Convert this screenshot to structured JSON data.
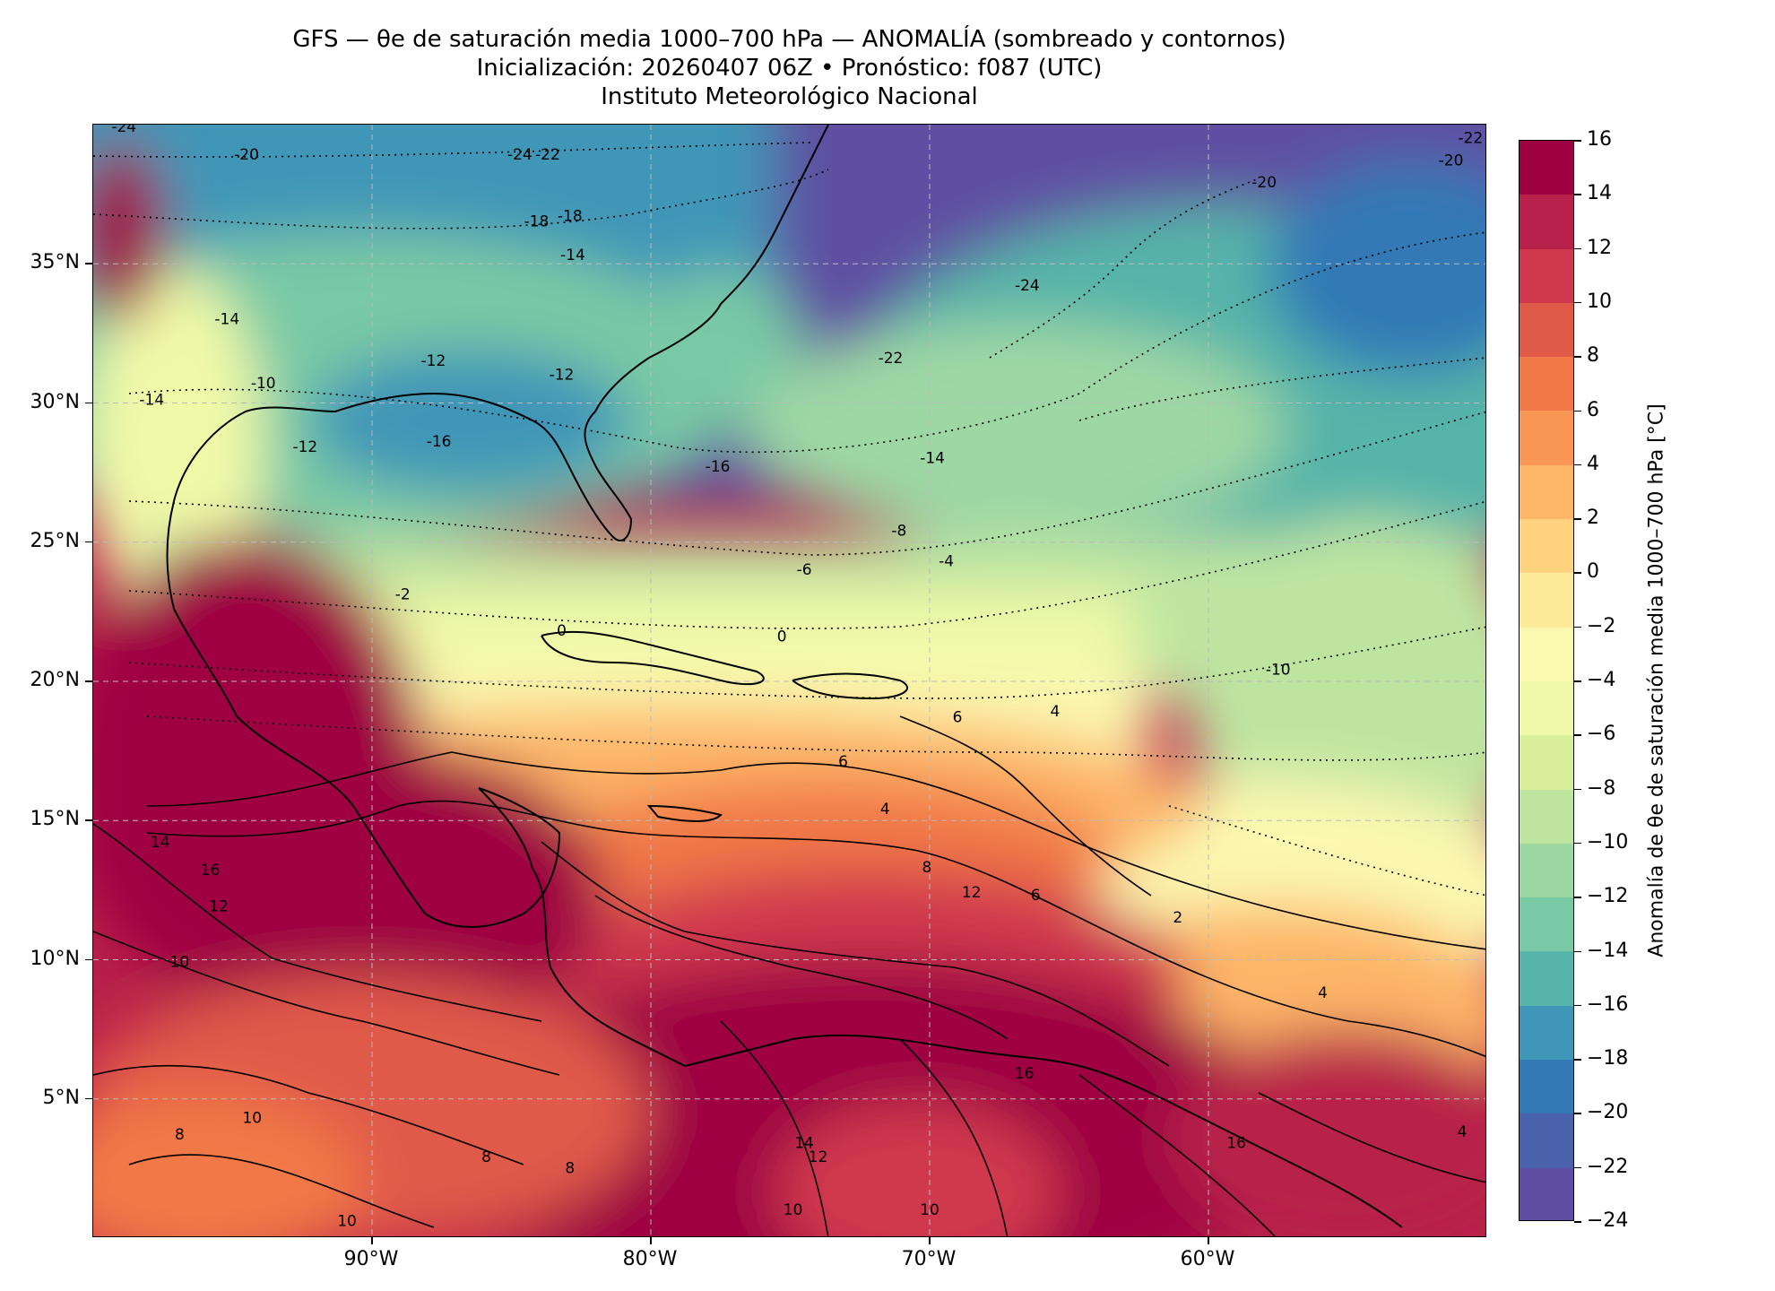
{
  "header": {
    "title_line1": "GFS — θe de saturación media 1000–700 hPa — ANOMALÍA (sombreado y contornos)",
    "title_line2": "Inicialización: 20260407 06Z   •   Pronóstico: f087 (UTC)",
    "title_line3": "Instituto Meteorológico Nacional"
  },
  "map": {
    "lat_ticks": [
      {
        "value": 35,
        "label": "35°N"
      },
      {
        "value": 30,
        "label": "30°N"
      },
      {
        "value": 25,
        "label": "25°N"
      },
      {
        "value": 20,
        "label": "20°N"
      },
      {
        "value": 15,
        "label": "15°N"
      },
      {
        "value": 10,
        "label": "10°N"
      },
      {
        "value": 5,
        "label": "5°N"
      }
    ],
    "lon_ticks": [
      {
        "value": -90,
        "label": "90°W"
      },
      {
        "value": -80,
        "label": "80°W"
      },
      {
        "value": -70,
        "label": "70°W"
      },
      {
        "value": -60,
        "label": "60°W"
      }
    ],
    "extent": {
      "lon_min": -100,
      "lon_max": -50,
      "lat_min": 0,
      "lat_max": 40
    },
    "contour_labels": [
      {
        "text": "-24",
        "lon": -98.9,
        "lat": 39.9
      },
      {
        "text": "-20",
        "lon": -94.5,
        "lat": 38.9
      },
      {
        "text": "-24",
        "lon": -84.7,
        "lat": 38.9
      },
      {
        "text": "-22",
        "lon": -83.7,
        "lat": 38.9
      },
      {
        "text": "-18",
        "lon": -84.1,
        "lat": 36.5
      },
      {
        "text": "-18",
        "lon": -82.9,
        "lat": 36.7
      },
      {
        "text": "-14",
        "lon": -82.8,
        "lat": 35.3
      },
      {
        "text": "-14",
        "lon": -95.2,
        "lat": 33.0
      },
      {
        "text": "-12",
        "lon": -87.8,
        "lat": 31.5
      },
      {
        "text": "-12",
        "lon": -83.2,
        "lat": 31.0
      },
      {
        "text": "-10",
        "lon": -93.9,
        "lat": 30.7
      },
      {
        "text": "-14",
        "lon": -97.9,
        "lat": 30.1
      },
      {
        "text": "-16",
        "lon": -87.6,
        "lat": 28.6
      },
      {
        "text": "-12",
        "lon": -92.4,
        "lat": 28.4
      },
      {
        "text": "-16",
        "lon": -77.6,
        "lat": 27.7
      },
      {
        "text": "-22",
        "lon": -71.4,
        "lat": 31.6
      },
      {
        "text": "-24",
        "lon": -66.5,
        "lat": 34.2
      },
      {
        "text": "-20",
        "lon": -58.0,
        "lat": 37.9
      },
      {
        "text": "-20",
        "lon": -51.3,
        "lat": 38.7
      },
      {
        "text": "-22",
        "lon": -50.6,
        "lat": 39.5
      },
      {
        "text": "-14",
        "lon": -69.9,
        "lat": 28.0
      },
      {
        "text": "-8",
        "lon": -71.1,
        "lat": 25.4
      },
      {
        "text": "-6",
        "lon": -74.5,
        "lat": 24.0
      },
      {
        "text": "-4",
        "lon": -69.4,
        "lat": 24.3
      },
      {
        "text": "-2",
        "lon": -88.9,
        "lat": 23.1
      },
      {
        "text": "0",
        "lon": -83.2,
        "lat": 21.8
      },
      {
        "text": "0",
        "lon": -75.3,
        "lat": 21.6
      },
      {
        "text": "-10",
        "lon": -57.5,
        "lat": 20.4
      },
      {
        "text": "4",
        "lon": -65.5,
        "lat": 18.9
      },
      {
        "text": "6",
        "lon": -73.1,
        "lat": 17.1
      },
      {
        "text": "6",
        "lon": -69.0,
        "lat": 18.7
      },
      {
        "text": "4",
        "lon": -71.6,
        "lat": 15.4
      },
      {
        "text": "8",
        "lon": -70.1,
        "lat": 13.3
      },
      {
        "text": "12",
        "lon": -68.5,
        "lat": 12.4
      },
      {
        "text": "6",
        "lon": -66.2,
        "lat": 12.3
      },
      {
        "text": "2",
        "lon": -61.1,
        "lat": 11.5
      },
      {
        "text": "14",
        "lon": -97.6,
        "lat": 14.2
      },
      {
        "text": "16",
        "lon": -95.8,
        "lat": 13.2
      },
      {
        "text": "12",
        "lon": -95.5,
        "lat": 11.9
      },
      {
        "text": "10",
        "lon": -96.9,
        "lat": 9.9
      },
      {
        "text": "10",
        "lon": -94.3,
        "lat": 4.3
      },
      {
        "text": "8",
        "lon": -96.9,
        "lat": 3.7
      },
      {
        "text": "8",
        "lon": -85.9,
        "lat": 2.9
      },
      {
        "text": "8",
        "lon": -82.9,
        "lat": 2.5
      },
      {
        "text": "10",
        "lon": -90.9,
        "lat": 0.6
      },
      {
        "text": "10",
        "lon": -74.9,
        "lat": 1.0
      },
      {
        "text": "10",
        "lon": -70.0,
        "lat": 1.0
      },
      {
        "text": "12",
        "lon": -74.0,
        "lat": 2.9
      },
      {
        "text": "14",
        "lon": -74.5,
        "lat": 3.4
      },
      {
        "text": "16",
        "lon": -59.0,
        "lat": 3.4
      },
      {
        "text": "16",
        "lon": -66.6,
        "lat": 5.9
      },
      {
        "text": "4",
        "lon": -55.9,
        "lat": 8.8
      },
      {
        "text": "4",
        "lon": -50.9,
        "lat": 3.8
      }
    ]
  },
  "colorbar": {
    "label": "Anomalía de θe de saturación media 1000–700 hPa [°C]",
    "levels": [
      16,
      14,
      12,
      10,
      8,
      6,
      4,
      2,
      0,
      -2,
      -4,
      -6,
      -8,
      -10,
      -12,
      -14,
      -16,
      -18,
      -20,
      -22,
      -24
    ],
    "tick_labels": [
      "16",
      "14",
      "12",
      "10",
      "8",
      "6",
      "4",
      "2",
      "0",
      "−2",
      "−4",
      "−6",
      "−8",
      "−10",
      "−12",
      "−14",
      "−16",
      "−18",
      "−20",
      "−22",
      "−24"
    ],
    "colors": [
      "#9e0142",
      "#b8214a",
      "#d0384e",
      "#e05a49",
      "#f17847",
      "#f99555",
      "#fdb567",
      "#fed27f",
      "#feeb9a",
      "#fbf8b0",
      "#f0f9a8",
      "#d9f09b",
      "#bee5a0",
      "#9dd7a4",
      "#79c9a5",
      "#57b4a9",
      "#3f96b7",
      "#3379b6",
      "#4962ab",
      "#5e4fa2"
    ]
  }
}
